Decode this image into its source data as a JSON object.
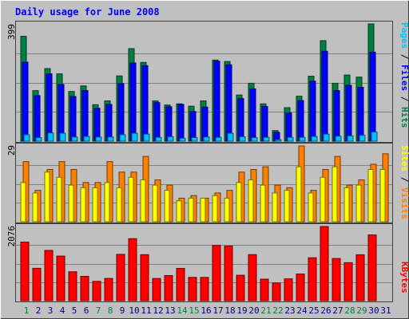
{
  "title": "Daily usage for June 2008",
  "colors": {
    "background": "#c0c0c0",
    "plot_background": "#c0c0c0",
    "title": "#0000ff",
    "hits": "#008040",
    "files": "#0000ff",
    "pages": "#00c0ff",
    "visits": "#ff8000",
    "sites": "#ffff00",
    "kbytes": "#ff0000",
    "weekday_label": "#000080",
    "weekend_label": "#008040"
  },
  "chart_data": [
    {
      "type": "bar",
      "panel": "hits-files-pages",
      "ylabel_parts": [
        {
          "text": "Pages",
          "series": "pages"
        },
        {
          "text": " / ",
          "series": "sep"
        },
        {
          "text": "Files",
          "series": "files"
        },
        {
          "text": " / ",
          "series": "sep"
        },
        {
          "text": "Hits",
          "series": "hits"
        }
      ],
      "max_label": "399",
      "ylim": [
        0,
        399
      ],
      "categories": [
        "1",
        "2",
        "3",
        "4",
        "5",
        "6",
        "7",
        "8",
        "9",
        "10",
        "11",
        "12",
        "13",
        "14",
        "15",
        "16",
        "17",
        "18",
        "19",
        "20",
        "21",
        "22",
        "23",
        "24",
        "25",
        "26",
        "27",
        "28",
        "29",
        "30",
        "31"
      ],
      "weekend_days": [
        "1",
        "7",
        "8",
        "14",
        "15",
        "21",
        "22",
        "28",
        "29"
      ],
      "series": [
        {
          "name": "Hits",
          "values": [
            357,
            172,
            247,
            229,
            169,
            188,
            124,
            137,
            222,
            315,
            268,
            137,
            123,
            127,
            119,
            137,
            276,
            271,
            157,
            197,
            127,
            36,
            114,
            153,
            221,
            342,
            197,
            225,
            218,
            399,
            0
          ]
        },
        {
          "name": "Files",
          "values": [
            269,
            155,
            229,
            193,
            152,
            172,
            112,
            125,
            196,
            266,
            257,
            131,
            117,
            125,
            101,
            116,
            272,
            260,
            145,
            178,
            118,
            30,
            96,
            138,
            204,
            306,
            172,
            190,
            183,
            303,
            0
          ]
        },
        {
          "name": "Pages",
          "values": [
            22,
            12,
            28,
            27,
            14,
            16,
            14,
            14,
            22,
            27,
            24,
            13,
            15,
            10,
            12,
            14,
            13,
            27,
            15,
            12,
            13,
            5,
            13,
            13,
            16,
            24,
            17,
            18,
            20,
            31,
            0
          ]
        }
      ]
    },
    {
      "type": "bar",
      "panel": "visits-sites",
      "ylabel_parts": [
        {
          "text": "Sites",
          "series": "sites"
        },
        {
          "text": " / ",
          "series": "sep"
        },
        {
          "text": "Visits",
          "series": "visits"
        }
      ],
      "max_label": "29",
      "ylim": [
        0,
        29
      ],
      "categories": [
        "1",
        "2",
        "3",
        "4",
        "5",
        "6",
        "7",
        "8",
        "9",
        "10",
        "11",
        "12",
        "13",
        "14",
        "15",
        "16",
        "17",
        "18",
        "19",
        "20",
        "21",
        "22",
        "23",
        "24",
        "25",
        "26",
        "27",
        "28",
        "29",
        "30",
        "31"
      ],
      "series": [
        {
          "name": "Visits",
          "values": [
            23,
            12,
            20,
            23,
            20,
            15,
            15,
            23,
            19,
            19,
            25,
            16,
            14,
            9,
            10,
            9,
            11,
            12,
            19,
            20,
            21,
            14,
            13,
            29,
            12,
            20,
            25,
            14,
            16,
            22,
            26
          ]
        },
        {
          "name": "Sites",
          "values": [
            15,
            11,
            19,
            17,
            14,
            13,
            13,
            15,
            13,
            17,
            16,
            14,
            12,
            8,
            9,
            9,
            10,
            9,
            15,
            16,
            14,
            11,
            12,
            21,
            11,
            17,
            21,
            13,
            14,
            20,
            20
          ]
        }
      ]
    },
    {
      "type": "bar",
      "panel": "kbytes",
      "ylabel_parts": [
        {
          "text": "KBytes",
          "series": "kbytes"
        }
      ],
      "max_label": "2076",
      "ylim": [
        0,
        2076
      ],
      "categories": [
        "1",
        "2",
        "3",
        "4",
        "5",
        "6",
        "7",
        "8",
        "9",
        "10",
        "11",
        "12",
        "13",
        "14",
        "15",
        "16",
        "17",
        "18",
        "19",
        "20",
        "21",
        "22",
        "23",
        "24",
        "25",
        "26",
        "27",
        "28",
        "29",
        "30",
        "31"
      ],
      "series": [
        {
          "name": "KBytes",
          "values": [
            1639,
            906,
            1407,
            1248,
            809,
            681,
            540,
            623,
            1296,
            1735,
            1288,
            620,
            703,
            904,
            652,
            652,
            1548,
            1528,
            712,
            1289,
            602,
            495,
            610,
            746,
            1201,
            2076,
            1180,
            1063,
            1285,
            1841,
            0
          ]
        }
      ]
    }
  ]
}
